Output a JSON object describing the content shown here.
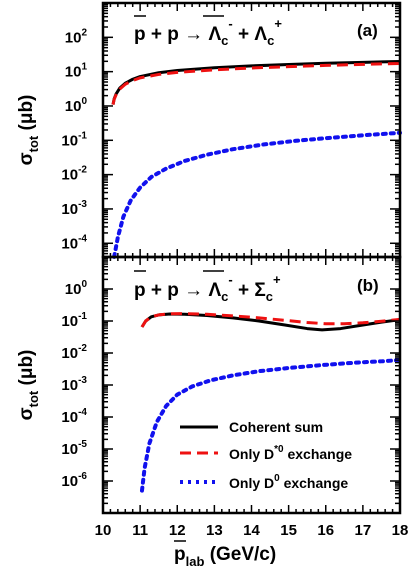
{
  "chart_data": [
    {
      "panel_label": "(a)",
      "type": "line",
      "y_scale": "log",
      "xlim": [
        10,
        18
      ],
      "ylim_exponents": [
        -4.4,
        3
      ],
      "ylabel": {
        "main": "σ",
        "sub": "tot",
        "unit": "(μb)"
      },
      "yticks": [
        {
          "base": "10",
          "exp": "-4",
          "value": -4
        },
        {
          "base": "10",
          "exp": "-3",
          "value": -3
        },
        {
          "base": "10",
          "exp": "-2",
          "value": -2
        },
        {
          "base": "10",
          "exp": "-1",
          "value": -1
        },
        {
          "base": "10",
          "exp": "0",
          "value": 0
        },
        {
          "base": "10",
          "exp": "1",
          "value": 1
        },
        {
          "base": "10",
          "exp": "2",
          "value": 2
        }
      ],
      "reaction": {
        "p1": "p",
        "plus1": "+",
        "p2": "p",
        "arrow": "→",
        "prod1": "Λ",
        "prod1_sub": "c",
        "prod1_sup": "-",
        "plus2": "+",
        "prod2": "Λ",
        "prod2_sub": "c",
        "prod2_sup": "+"
      },
      "series": [
        {
          "name": "Coherent sum",
          "color": "#000000",
          "style": "solid",
          "x": [
            10.27,
            10.3,
            10.35,
            10.45,
            10.6,
            10.8,
            11.0,
            11.5,
            12.0,
            13.0,
            14.0,
            15.0,
            16.0,
            17.0,
            18.0
          ],
          "y": [
            1.1,
            1.6,
            2.2,
            3.3,
            4.6,
            6.0,
            7.2,
            9.3,
            10.8,
            13.0,
            14.7,
            16.2,
            17.5,
            18.7,
            19.8
          ]
        },
        {
          "name": "Only D*0 exchange",
          "color": "#ee1111",
          "style": "dashed",
          "x": [
            10.27,
            10.3,
            10.35,
            10.45,
            10.6,
            10.8,
            11.0,
            11.5,
            12.0,
            13.0,
            14.0,
            15.0,
            16.0,
            17.0,
            18.0
          ],
          "y": [
            1.1,
            1.55,
            2.1,
            3.1,
            4.3,
            5.5,
            6.6,
            8.3,
            9.5,
            11.3,
            12.8,
            14.0,
            15.2,
            16.3,
            17.3
          ]
        },
        {
          "name": "Only D0 exchange",
          "color": "#1111ee",
          "style": "dotted",
          "x": [
            10.3,
            10.4,
            10.55,
            10.75,
            11.0,
            11.3,
            11.7,
            12.2,
            12.8,
            13.5,
            14.3,
            15.2,
            16.2,
            17.2,
            18.0
          ],
          "y": [
            4e-05,
            0.00015,
            0.0006,
            0.0018,
            0.0042,
            0.0085,
            0.015,
            0.025,
            0.038,
            0.055,
            0.075,
            0.097,
            0.12,
            0.145,
            0.165
          ]
        }
      ]
    },
    {
      "panel_label": "(b)",
      "type": "line",
      "y_scale": "log",
      "xlim": [
        10,
        18
      ],
      "ylim_exponents": [
        -7,
        1
      ],
      "ylabel": {
        "main": "σ",
        "sub": "tot",
        "unit": "(μb)"
      },
      "xlabel": {
        "main": "p",
        "sub": "lab",
        "unit": "(GeV/c)"
      },
      "xticks": [
        10,
        11,
        12,
        13,
        14,
        15,
        16,
        17,
        18
      ],
      "yticks": [
        {
          "base": "10",
          "exp": "-6",
          "value": -6
        },
        {
          "base": "10",
          "exp": "-5",
          "value": -5
        },
        {
          "base": "10",
          "exp": "-4",
          "value": -4
        },
        {
          "base": "10",
          "exp": "-3",
          "value": -3
        },
        {
          "base": "10",
          "exp": "-2",
          "value": -2
        },
        {
          "base": "10",
          "exp": "-1",
          "value": -1
        },
        {
          "base": "10",
          "exp": "0",
          "value": 0
        }
      ],
      "reaction": {
        "p1": "p",
        "plus1": "+",
        "p2": "p",
        "arrow": "→",
        "prod1": "Λ",
        "prod1_sub": "c",
        "prod1_sup": "-",
        "plus2": "+",
        "prod2": "Σ",
        "prod2_sub": "c",
        "prod2_sup": "+"
      },
      "legend": {
        "placement": "bottom-right",
        "entries": [
          {
            "label": "Coherent sum",
            "color": "#000000",
            "style": "solid"
          },
          {
            "label": "Only D",
            "sup": "*0",
            "suffix": " exchange",
            "color": "#ee1111",
            "style": "dashed"
          },
          {
            "label": "Only D",
            "sup": "0",
            "suffix": " exchange",
            "color": "#1111ee",
            "style": "dotted"
          }
        ]
      },
      "series": [
        {
          "name": "Coherent sum",
          "color": "#000000",
          "style": "solid",
          "x": [
            11.05,
            11.15,
            11.3,
            11.5,
            11.8,
            12.2,
            12.8,
            13.5,
            14.2,
            14.9,
            15.5,
            15.9,
            16.4,
            17.0,
            17.5,
            18.0
          ],
          "y": [
            0.065,
            0.1,
            0.135,
            0.155,
            0.165,
            0.162,
            0.148,
            0.125,
            0.1,
            0.075,
            0.058,
            0.053,
            0.058,
            0.075,
            0.092,
            0.11
          ]
        },
        {
          "name": "Only D*0 exchange",
          "color": "#ee1111",
          "style": "dashed",
          "x": [
            11.05,
            11.15,
            11.3,
            11.5,
            11.8,
            12.2,
            12.8,
            13.5,
            14.2,
            14.9,
            15.5,
            16.0,
            16.5,
            17.0,
            17.5,
            18.0
          ],
          "y": [
            0.065,
            0.1,
            0.135,
            0.155,
            0.168,
            0.17,
            0.162,
            0.145,
            0.125,
            0.105,
            0.09,
            0.082,
            0.082,
            0.088,
            0.098,
            0.112
          ]
        },
        {
          "name": "Only D0 exchange",
          "color": "#1111ee",
          "style": "dotted",
          "x": [
            11.05,
            11.12,
            11.25,
            11.45,
            11.7,
            12.0,
            12.4,
            12.9,
            13.5,
            14.2,
            15.0,
            15.9,
            16.8,
            17.5,
            18.0
          ],
          "y": [
            5e-07,
            2.5e-06,
            1.5e-05,
            7e-05,
            0.00022,
            0.0005,
            0.0009,
            0.0014,
            0.002,
            0.0027,
            0.0034,
            0.0042,
            0.005,
            0.0055,
            0.006
          ]
        }
      ]
    }
  ]
}
